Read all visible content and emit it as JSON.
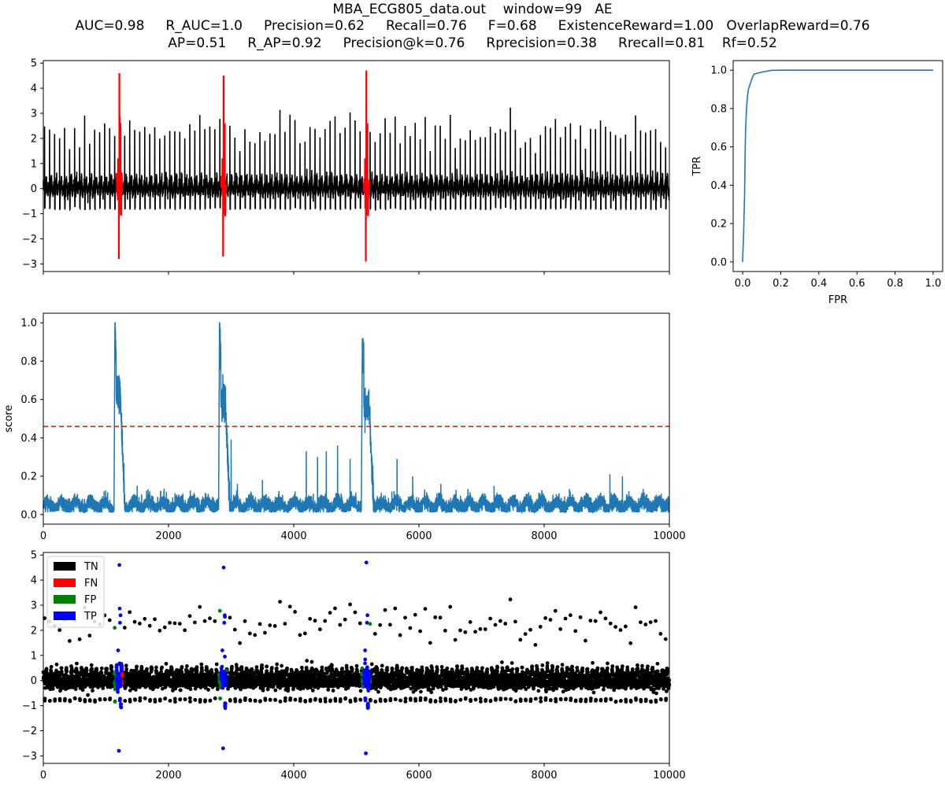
{
  "title": {
    "line1": "MBA_ECG805_data.out    window=99   AE",
    "line2": "AUC=0.98     R_AUC=1.0     Precision=0.62     Recall=0.76     F=0.68     ExistenceReward=1.00   OverlapReward=0.76",
    "line3": "AP=0.51     R_AP=0.92     Precision@k=0.76     Rprecision=0.38     Rrecall=0.81    Rf=0.52"
  },
  "colors": {
    "signal": "#000000",
    "anomaly": "#ff0000",
    "score": "#1f77b4",
    "threshold": "#ff0000",
    "tn": "#000000",
    "fn": "#ff0000",
    "fp": "#008000",
    "tp": "#0000ff"
  },
  "chart_data": [
    {
      "type": "line",
      "xlim": [
        0,
        10000
      ],
      "ylim": [
        -3.3,
        5.1
      ],
      "yticks": [
        -3,
        -2,
        -1,
        0,
        1,
        2,
        3,
        4,
        5
      ],
      "xticks": [
        0,
        2000,
        4000,
        6000,
        8000,
        10000
      ],
      "xtick_labels_visible": false,
      "series_description": "ECG signal (black) with anomaly segments highlighted in red",
      "signal": {
        "baseline_low": -0.8,
        "baseline_high": 0.5,
        "r_peak_typical": 2.3,
        "beat_period": 80,
        "n_points": 10000
      },
      "anomaly_ranges": [
        [
          1170,
          1260
        ],
        [
          2840,
          2920
        ],
        [
          5120,
          5210
        ]
      ],
      "anomaly_peaks": [
        {
          "x": 1215,
          "max": 4.6,
          "min": -2.8
        },
        {
          "x": 2880,
          "max": 4.5,
          "min": -2.7
        },
        {
          "x": 5160,
          "max": 4.7,
          "min": -2.9
        }
      ]
    },
    {
      "type": "line",
      "xlim": [
        0,
        10000
      ],
      "ylim": [
        -0.05,
        1.05
      ],
      "yticks": [
        0.0,
        0.2,
        0.4,
        0.6,
        0.8,
        1.0
      ],
      "yticklabels": [
        "0.0",
        "0.2",
        "0.4",
        "0.6",
        "0.8",
        "1.0"
      ],
      "xticks": [
        0,
        2000,
        4000,
        6000,
        8000,
        10000
      ],
      "ylabel": "score",
      "threshold": 0.46,
      "score_baseline": 0.05,
      "score_peaks": [
        {
          "start": 1130,
          "end": 1300,
          "max": 1.0,
          "plateau": 0.62
        },
        {
          "start": 2800,
          "end": 2980,
          "max": 1.0,
          "plateau": 0.6
        },
        {
          "start": 5080,
          "end": 5280,
          "max": 0.92,
          "plateau": 0.57
        }
      ],
      "secondary_spikes": [
        {
          "x": 3000,
          "y": 0.39
        },
        {
          "x": 3100,
          "y": 0.16
        },
        {
          "x": 3500,
          "y": 0.18
        },
        {
          "x": 4200,
          "y": 0.33
        },
        {
          "x": 4380,
          "y": 0.3
        },
        {
          "x": 4520,
          "y": 0.33
        },
        {
          "x": 4700,
          "y": 0.36
        },
        {
          "x": 4900,
          "y": 0.29
        },
        {
          "x": 5650,
          "y": 0.29
        },
        {
          "x": 5900,
          "y": 0.2
        },
        {
          "x": 6350,
          "y": 0.16
        },
        {
          "x": 7200,
          "y": 0.15
        },
        {
          "x": 9050,
          "y": 0.21
        },
        {
          "x": 9250,
          "y": 0.2
        },
        {
          "x": 1500,
          "y": 0.15
        }
      ]
    },
    {
      "type": "scatter",
      "xlim": [
        0,
        10000
      ],
      "ylim": [
        -3.3,
        5.1
      ],
      "yticks": [
        -3,
        -2,
        -1,
        0,
        1,
        2,
        3,
        4,
        5
      ],
      "xticks": [
        0,
        2000,
        4000,
        6000,
        8000,
        10000
      ],
      "legend": {
        "placement": "top-left",
        "entries": [
          "TN",
          "FN",
          "FP",
          "TP"
        ]
      }
    },
    {
      "type": "line",
      "xlim": [
        -0.05,
        1.05
      ],
      "ylim": [
        -0.05,
        1.05
      ],
      "xticks": [
        0.0,
        0.2,
        0.4,
        0.6,
        0.8,
        1.0
      ],
      "yticks": [
        0.0,
        0.2,
        0.4,
        0.6,
        0.8,
        1.0
      ],
      "xlabel": "FPR",
      "ylabel": "TPR",
      "roc": {
        "fpr": [
          0.0,
          0.0,
          0.005,
          0.01,
          0.012,
          0.015,
          0.02,
          0.025,
          0.03,
          0.04,
          0.05,
          0.06,
          0.08,
          0.1,
          0.15,
          0.2,
          1.0
        ],
        "tpr": [
          0.0,
          0.02,
          0.15,
          0.35,
          0.5,
          0.68,
          0.8,
          0.86,
          0.9,
          0.93,
          0.96,
          0.98,
          0.985,
          0.99,
          0.999,
          1.0,
          1.0
        ]
      }
    }
  ]
}
